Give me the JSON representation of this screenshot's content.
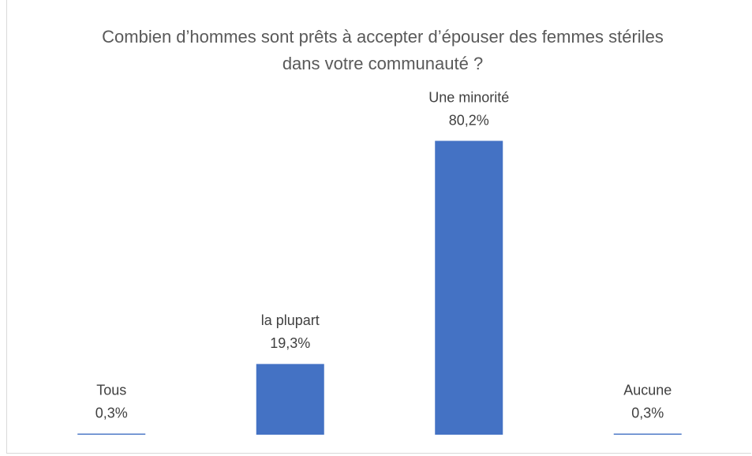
{
  "chart_data": {
    "type": "bar",
    "title": "Combien d’hommes sont prêts à accepter d’épouser des femmes stériles dans votre communauté ?",
    "categories": [
      "Tous",
      "la plupart",
      "Une minorité",
      "Aucune"
    ],
    "values": [
      0.3,
      19.3,
      80.2,
      0.3
    ],
    "value_labels": [
      "0,3%",
      "19,3%",
      "80,2%",
      "0,3%"
    ],
    "color": "#4472c4",
    "ylim": [
      0,
      90
    ]
  }
}
